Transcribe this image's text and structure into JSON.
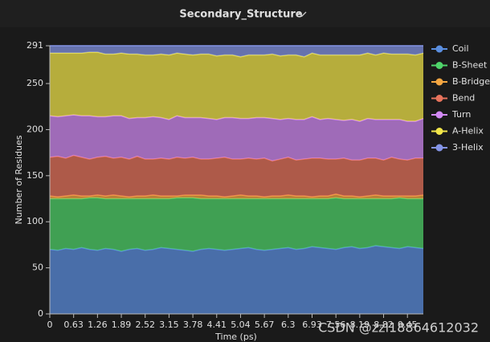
{
  "chart_data": {
    "type": "stacked_area",
    "title": "Secondary_Structure",
    "xlabel": "Time (ps)",
    "ylabel": "Number of Residues",
    "watermark": "CSDN @zzl18864612032",
    "xlim": [
      0,
      9.87
    ],
    "xticks": [
      0,
      0.63,
      1.26,
      1.89,
      2.52,
      3.15,
      3.78,
      4.41,
      5.04,
      5.67,
      6.3,
      6.93,
      7.56,
      8.19,
      8.82,
      9.45
    ],
    "ylim": [
      0,
      291
    ],
    "yticks": [
      0,
      50,
      100,
      150,
      200,
      250,
      291
    ],
    "x": [
      0,
      0.21,
      0.42,
      0.63,
      0.84,
      1.05,
      1.26,
      1.47,
      1.68,
      1.89,
      2.1,
      2.31,
      2.52,
      2.73,
      2.94,
      3.15,
      3.36,
      3.57,
      3.78,
      3.99,
      4.2,
      4.41,
      4.62,
      4.83,
      5.04,
      5.25,
      5.46,
      5.67,
      5.88,
      6.09,
      6.3,
      6.51,
      6.72,
      6.93,
      7.14,
      7.35,
      7.56,
      7.77,
      7.98,
      8.19,
      8.4,
      8.61,
      8.82,
      9.03,
      9.24,
      9.45,
      9.66,
      9.87
    ],
    "legend": "right",
    "series": [
      {
        "name": "Coil",
        "color": "#5b8fe0",
        "values": [
          70,
          69,
          71,
          70,
          72,
          70,
          69,
          71,
          70,
          68,
          70,
          71,
          69,
          70,
          72,
          71,
          70,
          69,
          68,
          70,
          71,
          70,
          69,
          70,
          71,
          72,
          70,
          69,
          70,
          71,
          72,
          70,
          71,
          73,
          72,
          71,
          70,
          72,
          73,
          71,
          72,
          74,
          73,
          72,
          71,
          73,
          72,
          71
        ]
      },
      {
        "name": "B-Sheet",
        "color": "#4fd46a",
        "values": [
          55,
          56,
          54,
          55,
          53,
          56,
          57,
          54,
          55,
          57,
          55,
          54,
          56,
          55,
          53,
          54,
          56,
          57,
          58,
          55,
          54,
          55,
          56,
          55,
          54,
          53,
          55,
          56,
          55,
          54,
          53,
          55,
          54,
          52,
          53,
          54,
          56,
          53,
          52,
          54,
          53,
          51,
          52,
          53,
          55,
          52,
          53,
          54
        ]
      },
      {
        "name": "B-Bridge",
        "color": "#f4a642",
        "values": [
          3,
          2,
          3,
          4,
          3,
          2,
          3,
          3,
          4,
          3,
          2,
          3,
          3,
          4,
          3,
          3,
          2,
          3,
          3,
          4,
          3,
          3,
          2,
          3,
          4,
          3,
          3,
          2,
          3,
          3,
          4,
          3,
          3,
          2,
          3,
          3,
          4,
          3,
          3,
          2,
          3,
          4,
          3,
          3,
          2,
          3,
          3,
          4
        ]
      },
      {
        "name": "Bend",
        "color": "#e8735c",
        "values": [
          42,
          44,
          41,
          43,
          42,
          40,
          41,
          43,
          40,
          42,
          41,
          43,
          40,
          39,
          41,
          40,
          42,
          40,
          41,
          39,
          40,
          41,
          43,
          40,
          39,
          41,
          40,
          42,
          38,
          40,
          41,
          39,
          40,
          42,
          41,
          40,
          38,
          41,
          39,
          40,
          41,
          40,
          39,
          42,
          40,
          39,
          41,
          40
        ]
      },
      {
        "name": "Turn",
        "color": "#d38af5",
        "values": [
          45,
          43,
          46,
          44,
          45,
          47,
          44,
          43,
          46,
          45,
          44,
          42,
          45,
          46,
          44,
          43,
          45,
          44,
          43,
          45,
          44,
          42,
          43,
          45,
          44,
          43,
          45,
          44,
          46,
          43,
          42,
          44,
          43,
          45,
          42,
          44,
          43,
          41,
          44,
          42,
          43,
          42,
          44,
          41,
          43,
          42,
          40,
          43
        ]
      },
      {
        "name": "A-Helix",
        "color": "#f2e64a",
        "values": [
          68,
          69,
          68,
          67,
          68,
          69,
          70,
          68,
          67,
          68,
          70,
          69,
          68,
          67,
          69,
          70,
          68,
          69,
          68,
          69,
          70,
          69,
          68,
          68,
          67,
          69,
          68,
          68,
          70,
          69,
          69,
          70,
          68,
          69,
          70,
          69,
          70,
          71,
          70,
          72,
          71,
          70,
          72,
          71,
          71,
          73,
          72,
          71
        ]
      },
      {
        "name": "3-Helix",
        "color": "#8494e6",
        "values": [
          8,
          8,
          8,
          8,
          8,
          7,
          7,
          9,
          9,
          8,
          9,
          9,
          10,
          10,
          9,
          10,
          8,
          9,
          10,
          9,
          9,
          11,
          10,
          10,
          12,
          10,
          10,
          10,
          9,
          11,
          10,
          10,
          12,
          8,
          10,
          10,
          10,
          10,
          10,
          10,
          8,
          10,
          8,
          9,
          9,
          9,
          10,
          8
        ]
      }
    ]
  }
}
